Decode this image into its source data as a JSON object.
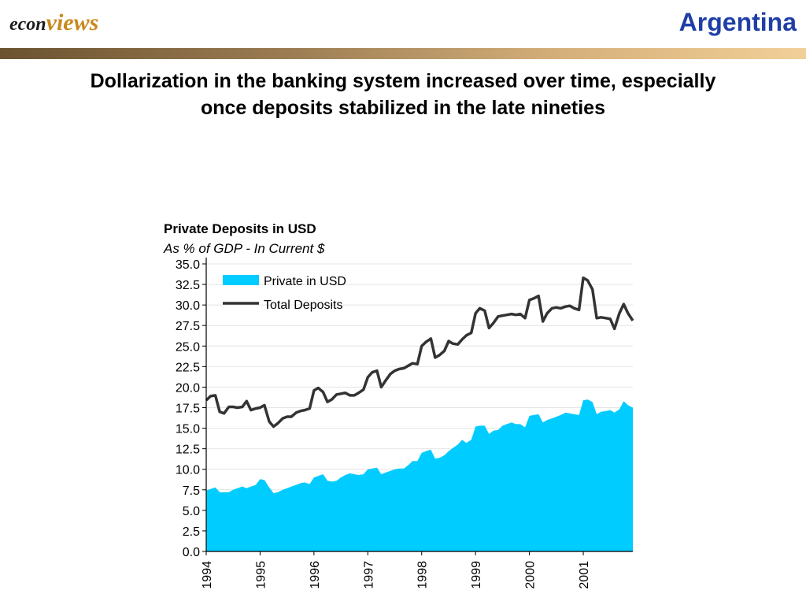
{
  "header": {
    "brand_part1": "econ",
    "brand_part2": "views",
    "country": "Argentina"
  },
  "headline": {
    "line1": "Dollarization in the banking system increased over time, especially",
    "line2": "once deposits stabilized in the late nineties"
  },
  "colors": {
    "brand_dark": "#1c1c1c",
    "brand_gold": "#c8891e",
    "country_blue": "#1f3fa6",
    "area_fill": "#00ccff",
    "line_color": "#333333"
  },
  "chart_data": {
    "type": "area",
    "title": "Private Deposits in USD",
    "subtitle": "As % of GDP - In Current $",
    "xlabel": "",
    "ylabel": "",
    "ylim": [
      0,
      35
    ],
    "yticks": [
      "0.0",
      "2.5",
      "5.0",
      "7.5",
      "10.0",
      "12.5",
      "15.0",
      "17.5",
      "20.0",
      "22.5",
      "25.0",
      "27.5",
      "30.0",
      "32.5",
      "35.0"
    ],
    "xticks": [
      "1994",
      "1995",
      "1996",
      "1997",
      "1998",
      "1999",
      "2000",
      "2001"
    ],
    "xlim": [
      1994.0,
      2001.92
    ],
    "grid": true,
    "legend_position": "top-left",
    "series": [
      {
        "name": "Private in USD",
        "kind": "area",
        "x": [
          1994.0,
          1994.08,
          1994.17,
          1994.25,
          1994.33,
          1994.42,
          1994.5,
          1994.58,
          1994.67,
          1994.75,
          1994.83,
          1994.92,
          1995.0,
          1995.08,
          1995.17,
          1995.25,
          1995.33,
          1995.42,
          1995.5,
          1995.58,
          1995.67,
          1995.75,
          1995.83,
          1995.92,
          1996.0,
          1996.08,
          1996.17,
          1996.25,
          1996.33,
          1996.42,
          1996.5,
          1996.58,
          1996.67,
          1996.75,
          1996.83,
          1996.92,
          1997.0,
          1997.08,
          1997.17,
          1997.25,
          1997.33,
          1997.42,
          1997.5,
          1997.58,
          1997.67,
          1997.75,
          1997.83,
          1997.92,
          1998.0,
          1998.08,
          1998.17,
          1998.25,
          1998.33,
          1998.42,
          1998.5,
          1998.58,
          1998.67,
          1998.75,
          1998.83,
          1998.92,
          1999.0,
          1999.08,
          1999.17,
          1999.25,
          1999.33,
          1999.42,
          1999.5,
          1999.58,
          1999.67,
          1999.75,
          1999.83,
          1999.92,
          2000.0,
          2000.08,
          2000.17,
          2000.25,
          2000.33,
          2000.42,
          2000.5,
          2000.58,
          2000.67,
          2000.75,
          2000.83,
          2000.92,
          2001.0,
          2001.08,
          2001.17,
          2001.25,
          2001.33,
          2001.42,
          2001.5,
          2001.58,
          2001.67,
          2001.75,
          2001.83,
          2001.92
        ],
        "values": [
          7.4,
          7.6,
          7.8,
          7.2,
          7.2,
          7.2,
          7.5,
          7.7,
          7.9,
          7.7,
          7.9,
          8.1,
          8.8,
          8.7,
          7.8,
          7.1,
          7.2,
          7.5,
          7.7,
          7.9,
          8.1,
          8.3,
          8.4,
          8.2,
          9.0,
          9.2,
          9.4,
          8.6,
          8.5,
          8.6,
          9.0,
          9.3,
          9.5,
          9.4,
          9.3,
          9.4,
          10.0,
          10.1,
          10.2,
          9.4,
          9.6,
          9.8,
          10.0,
          10.1,
          10.1,
          10.5,
          11.0,
          11.0,
          12.0,
          12.2,
          12.4,
          11.3,
          11.4,
          11.7,
          12.2,
          12.6,
          13.0,
          13.6,
          13.2,
          13.6,
          15.2,
          15.3,
          15.3,
          14.3,
          14.7,
          14.8,
          15.3,
          15.5,
          15.7,
          15.5,
          15.5,
          15.1,
          16.5,
          16.6,
          16.7,
          15.7,
          16.0,
          16.2,
          16.4,
          16.6,
          16.9,
          16.8,
          16.7,
          16.6,
          18.4,
          18.5,
          18.2,
          16.7,
          17.0,
          17.1,
          17.2,
          16.9,
          17.3,
          18.3,
          17.8,
          17.5
        ]
      },
      {
        "name": "Total Deposits",
        "kind": "line",
        "x": [
          1994.0,
          1994.08,
          1994.17,
          1994.25,
          1994.33,
          1994.42,
          1994.5,
          1994.58,
          1994.67,
          1994.75,
          1994.83,
          1994.92,
          1995.0,
          1995.08,
          1995.17,
          1995.25,
          1995.33,
          1995.42,
          1995.5,
          1995.58,
          1995.67,
          1995.75,
          1995.83,
          1995.92,
          1996.0,
          1996.08,
          1996.17,
          1996.25,
          1996.33,
          1996.42,
          1996.5,
          1996.58,
          1996.67,
          1996.75,
          1996.83,
          1996.92,
          1997.0,
          1997.08,
          1997.17,
          1997.25,
          1997.33,
          1997.42,
          1997.5,
          1997.58,
          1997.67,
          1997.75,
          1997.83,
          1997.92,
          1998.0,
          1998.08,
          1998.17,
          1998.25,
          1998.33,
          1998.42,
          1998.5,
          1998.58,
          1998.67,
          1998.75,
          1998.83,
          1998.92,
          1999.0,
          1999.08,
          1999.17,
          1999.25,
          1999.33,
          1999.42,
          1999.5,
          1999.58,
          1999.67,
          1999.75,
          1999.83,
          1999.92,
          2000.0,
          2000.08,
          2000.17,
          2000.25,
          2000.33,
          2000.42,
          2000.5,
          2000.58,
          2000.67,
          2000.75,
          2000.83,
          2000.92,
          2001.0,
          2001.08,
          2001.17,
          2001.25,
          2001.33,
          2001.42,
          2001.5,
          2001.58,
          2001.67,
          2001.75,
          2001.83,
          2001.92
        ],
        "values": [
          18.4,
          18.9,
          19.0,
          17.0,
          16.8,
          17.6,
          17.6,
          17.5,
          17.6,
          18.3,
          17.2,
          17.4,
          17.5,
          17.8,
          15.8,
          15.2,
          15.6,
          16.2,
          16.4,
          16.4,
          16.9,
          17.1,
          17.2,
          17.4,
          19.6,
          19.9,
          19.4,
          18.2,
          18.5,
          19.1,
          19.2,
          19.3,
          19.0,
          19.0,
          19.3,
          19.7,
          21.2,
          21.8,
          22.0,
          20.0,
          20.8,
          21.6,
          22.0,
          22.2,
          22.3,
          22.6,
          22.9,
          22.8,
          25.0,
          25.5,
          25.9,
          23.6,
          23.9,
          24.4,
          25.6,
          25.3,
          25.2,
          25.8,
          26.3,
          26.6,
          29.0,
          29.6,
          29.3,
          27.2,
          27.8,
          28.6,
          28.7,
          28.8,
          28.9,
          28.8,
          28.9,
          28.4,
          30.6,
          30.8,
          31.1,
          28.0,
          29.0,
          29.6,
          29.7,
          29.6,
          29.8,
          29.9,
          29.6,
          29.4,
          33.3,
          33.0,
          31.9,
          28.4,
          28.5,
          28.4,
          28.3,
          27.1,
          29.0,
          30.1,
          29.0,
          28.1
        ]
      }
    ]
  }
}
